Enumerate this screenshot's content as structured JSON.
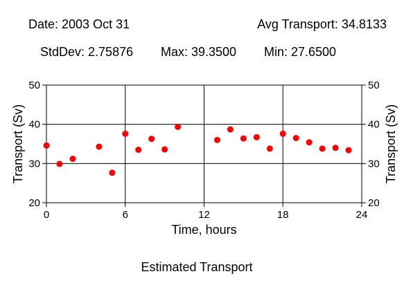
{
  "header": {
    "date": "Date: 2003 Oct 31",
    "avg": "Avg Transport: 34.8133",
    "stddev": "StdDev: 2.75876",
    "max": "Max: 39.3500",
    "min": "Min: 27.6500"
  },
  "chart_data": {
    "type": "scatter",
    "title": "Estimated Transport",
    "xlabel": "Time, hours",
    "ylabel": "Transport (Sv)",
    "xlim": [
      0,
      24
    ],
    "ylim": [
      20,
      50
    ],
    "xticks": [
      0,
      6,
      12,
      18,
      24
    ],
    "yticks": [
      20,
      30,
      40,
      50
    ],
    "grid": true,
    "marker_color": "#ff0000",
    "points": [
      {
        "x": 0,
        "y": 34.6
      },
      {
        "x": 1,
        "y": 29.9
      },
      {
        "x": 2,
        "y": 31.2
      },
      {
        "x": 4,
        "y": 34.3
      },
      {
        "x": 5,
        "y": 27.65
      },
      {
        "x": 6,
        "y": 37.6
      },
      {
        "x": 7,
        "y": 33.5
      },
      {
        "x": 8,
        "y": 36.3
      },
      {
        "x": 9,
        "y": 33.6
      },
      {
        "x": 10,
        "y": 39.35
      },
      {
        "x": 13,
        "y": 36.0
      },
      {
        "x": 14,
        "y": 38.7
      },
      {
        "x": 15,
        "y": 36.4
      },
      {
        "x": 16,
        "y": 36.7
      },
      {
        "x": 17,
        "y": 33.8
      },
      {
        "x": 18,
        "y": 37.6
      },
      {
        "x": 19,
        "y": 36.5
      },
      {
        "x": 20,
        "y": 35.4
      },
      {
        "x": 21,
        "y": 33.8
      },
      {
        "x": 22,
        "y": 34.0
      },
      {
        "x": 23,
        "y": 33.4
      }
    ]
  }
}
